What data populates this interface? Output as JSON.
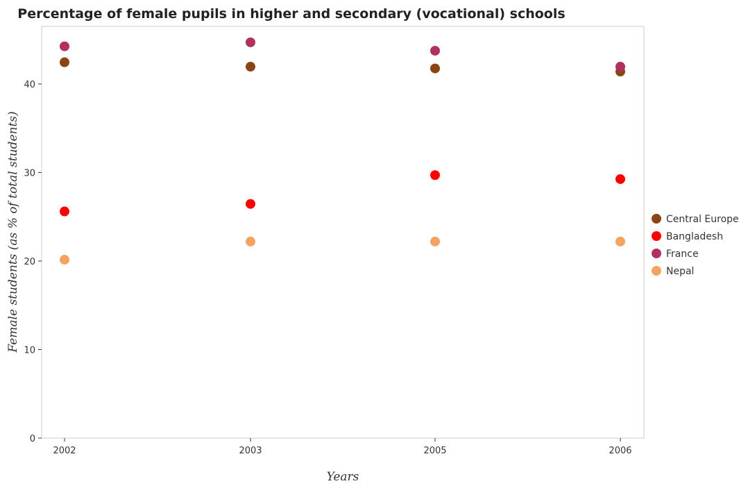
{
  "chart_data": {
    "type": "scatter",
    "title": "Percentage of female pupils in higher and secondary (vocational) schools",
    "xlabel": "Years",
    "ylabel": "Female students (as % of total students)",
    "categories": [
      "2002",
      "2003",
      "2005",
      "2006"
    ],
    "ylim": [
      0,
      46.5
    ],
    "yticks": [
      0,
      10,
      20,
      30,
      40
    ],
    "grid": false,
    "legend_position": "right",
    "series": [
      {
        "name": "Central Europe",
        "color": "#8B4513",
        "values": [
          42.45,
          41.95,
          41.75,
          41.4
        ]
      },
      {
        "name": "Bangladesh",
        "color": "#FF0000",
        "values": [
          25.6,
          26.45,
          29.7,
          29.25
        ]
      },
      {
        "name": "France",
        "color": "#B03060",
        "values": [
          44.25,
          44.7,
          43.75,
          41.95
        ]
      },
      {
        "name": "Nepal",
        "color": "#F4A460",
        "values": [
          20.15,
          22.2,
          22.2,
          22.2
        ]
      }
    ]
  }
}
